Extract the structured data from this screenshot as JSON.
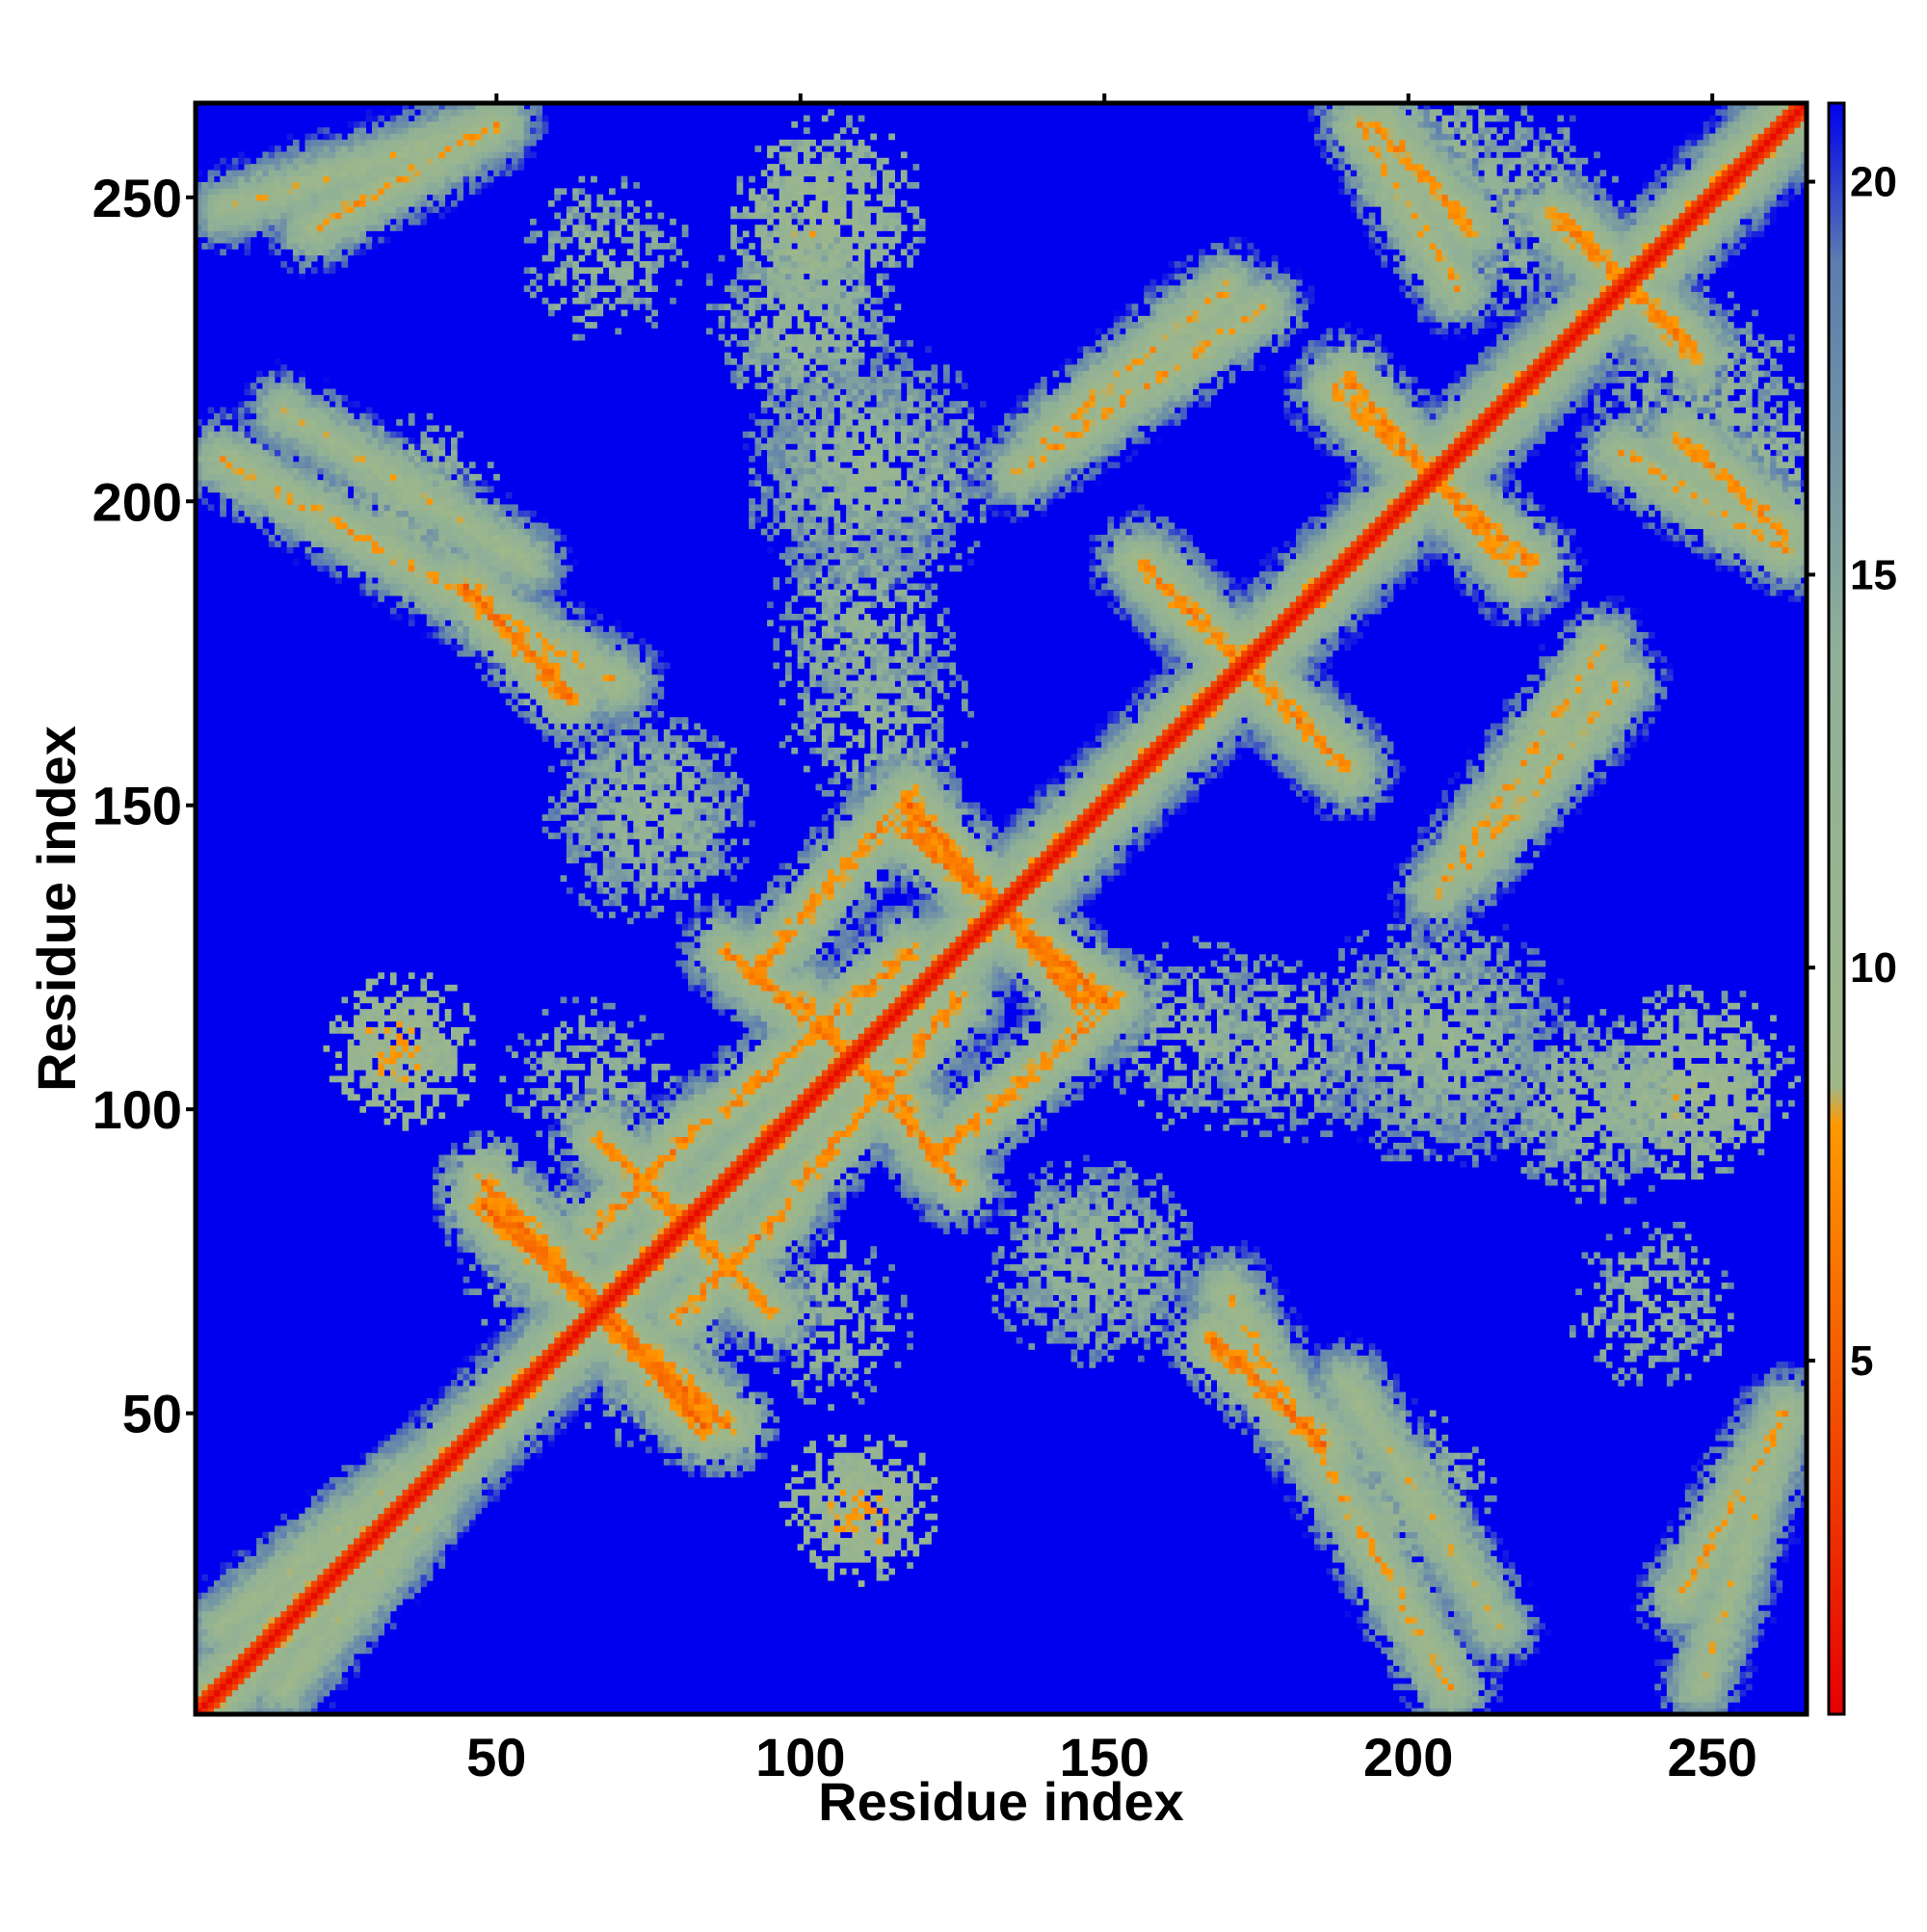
{
  "chart_data": {
    "type": "heatmap",
    "title": "",
    "xlabel": "Residue index",
    "ylabel": "Residue index",
    "xlim": [
      1,
      265
    ],
    "ylim": [
      1,
      265
    ],
    "grid": false,
    "x_ticks": [
      50,
      100,
      150,
      200,
      250
    ],
    "y_ticks": [
      50,
      100,
      150,
      200,
      250
    ],
    "colorbar": {
      "range": [
        0.5,
        21
      ],
      "ticks": [
        5,
        10,
        15,
        20
      ],
      "tick_labels": [
        "5",
        "10",
        "15",
        "20"
      ],
      "stops": [
        {
          "value": 0.5,
          "color": "#e60000"
        },
        {
          "value": 8,
          "color": "#ff9900"
        },
        {
          "value": 8.5,
          "color": "#9fb88a"
        },
        {
          "value": 14,
          "color": "#8fb098"
        },
        {
          "value": 19,
          "color": "#5a7cb0"
        },
        {
          "value": 21,
          "color": "#0000ee"
        }
      ]
    },
    "background_value": 21,
    "background_color": "#0000ee",
    "diagonal": {
      "from": 1,
      "to": 265,
      "value": 1
    },
    "bands": [
      {
        "name": "main-diagonal-halo",
        "from": [
          1,
          1
        ],
        "to": [
          265,
          265
        ],
        "width": 4,
        "value": 6
      },
      {
        "name": "helix-pair-A",
        "from": [
          48,
          84
        ],
        "to": [
          88,
          48
        ],
        "width": 2.5,
        "value": 6
      },
      {
        "name": "helix-pair-B",
        "from": [
          56,
          78
        ],
        "to": [
          82,
          52
        ],
        "width": 2.5,
        "value": 7
      },
      {
        "name": "helix-pair-C",
        "from": [
          95,
          67
        ],
        "to": [
          77,
          85
        ],
        "width": 2.5,
        "value": 7
      },
      {
        "name": "helix-pair-D",
        "from": [
          84,
          98
        ],
        "to": [
          66,
          80
        ],
        "width": 2.5,
        "value": 7
      },
      {
        "name": "cross-100-120",
        "from": [
          100,
          88
        ],
        "to": [
          126,
          118
        ],
        "width": 2.5,
        "value": 7
      },
      {
        "name": "cross-105-115",
        "from": [
          88,
          126
        ],
        "to": [
          118,
          100
        ],
        "width": 2.5,
        "value": 7
      },
      {
        "name": "cross-130-150",
        "from": [
          118,
          150
        ],
        "to": [
          146,
          118
        ],
        "width": 2.5,
        "value": 6
      },
      {
        "name": "cross-140-120",
        "from": [
          122,
          92
        ],
        "to": [
          152,
          118
        ],
        "width": 2.5,
        "value": 7
      },
      {
        "name": "cross-170-190",
        "from": [
          158,
          188
        ],
        "to": [
          190,
          156
        ],
        "width": 3,
        "value": 7
      },
      {
        "name": "cross-175-65",
        "from": [
          168,
          62
        ],
        "to": [
          186,
          45
        ],
        "width": 2.5,
        "value": 6
      },
      {
        "name": "cross-200-210",
        "from": [
          190,
          220
        ],
        "to": [
          218,
          188
        ],
        "width": 3,
        "value": 7
      },
      {
        "name": "cross-235",
        "from": [
          224,
          247
        ],
        "to": [
          246,
          226
        ],
        "width": 2.5,
        "value": 7
      },
      {
        "name": "upper-left-arm",
        "from": [
          5,
          207
        ],
        "to": [
          70,
          170
        ],
        "width": 3,
        "value": 8
      },
      {
        "name": "upper-left-top",
        "from": [
          5,
          248
        ],
        "to": [
          50,
          262
        ],
        "width": 3,
        "value": 9
      },
      {
        "name": "upper-mid-arm",
        "from": [
          136,
          205
        ],
        "to": [
          176,
          232
        ],
        "width": 3,
        "value": 8
      },
      {
        "name": "right-arm",
        "from": [
          210,
          140
        ],
        "to": [
          235,
          170
        ],
        "width": 3,
        "value": 8
      },
      {
        "name": "right-lower-arm",
        "from": [
          190,
          55
        ],
        "to": [
          215,
          15
        ],
        "width": 3,
        "value": 9
      },
      {
        "name": "corner-bottom-right",
        "from": [
          245,
          20
        ],
        "to": [
          262,
          50
        ],
        "width": 3,
        "value": 8
      },
      {
        "name": "corner-top-right-a",
        "from": [
          192,
          262
        ],
        "to": [
          208,
          235
        ],
        "width": 2.5,
        "value": 8
      },
      {
        "name": "corner-right-b",
        "from": [
          245,
          210
        ],
        "to": [
          262,
          195
        ],
        "width": 2.5,
        "value": 7
      },
      {
        "name": "bottom-left-lower",
        "from": [
          5,
          15
        ],
        "to": [
          35,
          40
        ],
        "width": 4,
        "value": 9
      }
    ],
    "blobs": [
      {
        "name": "blob-108-36",
        "x": 110,
        "y": 35,
        "r": 9,
        "value": 9
      },
      {
        "name": "blob-32-110",
        "x": 33,
        "y": 110,
        "r": 8,
        "value": 8
      },
      {
        "name": "blob-248-100",
        "x": 246,
        "y": 102,
        "r": 10,
        "value": 9
      },
      {
        "name": "blob-105-248",
        "x": 105,
        "y": 248,
        "r": 12,
        "value": 10
      },
      {
        "name": "blob-210-110",
        "x": 205,
        "y": 112,
        "r": 18,
        "value": 11
      },
      {
        "name": "blob-70-110",
        "x": 65,
        "y": 105,
        "r": 10,
        "value": 12
      },
      {
        "name": "blob-110-210",
        "x": 110,
        "y": 205,
        "r": 16,
        "value": 12
      },
      {
        "name": "blob-175-110",
        "x": 180,
        "y": 110,
        "r": 12,
        "value": 12
      },
      {
        "name": "blob-110-170",
        "x": 112,
        "y": 165,
        "r": 12,
        "value": 12
      },
      {
        "name": "blob-230-100",
        "x": 232,
        "y": 100,
        "r": 12,
        "value": 12
      },
      {
        "name": "blob-100-230",
        "x": 100,
        "y": 228,
        "r": 10,
        "value": 12
      },
      {
        "name": "blob-60-75",
        "x": 75,
        "y": 60,
        "r": 12,
        "value": 12
      },
      {
        "name": "blob-255-200",
        "x": 255,
        "y": 205,
        "r": 10,
        "value": 11
      },
      {
        "name": "blob-240-70",
        "x": 240,
        "y": 68,
        "r": 10,
        "value": 12
      },
      {
        "name": "blob-230-240",
        "x": 218,
        "y": 248,
        "r": 14,
        "value": 12
      },
      {
        "name": "blob-140-70",
        "x": 150,
        "y": 75,
        "r": 12,
        "value": 12
      },
      {
        "name": "blob-70-145",
        "x": 75,
        "y": 148,
        "r": 14,
        "value": 12
      },
      {
        "name": "blob-40-205",
        "x": 35,
        "y": 200,
        "r": 12,
        "value": 11
      }
    ]
  }
}
